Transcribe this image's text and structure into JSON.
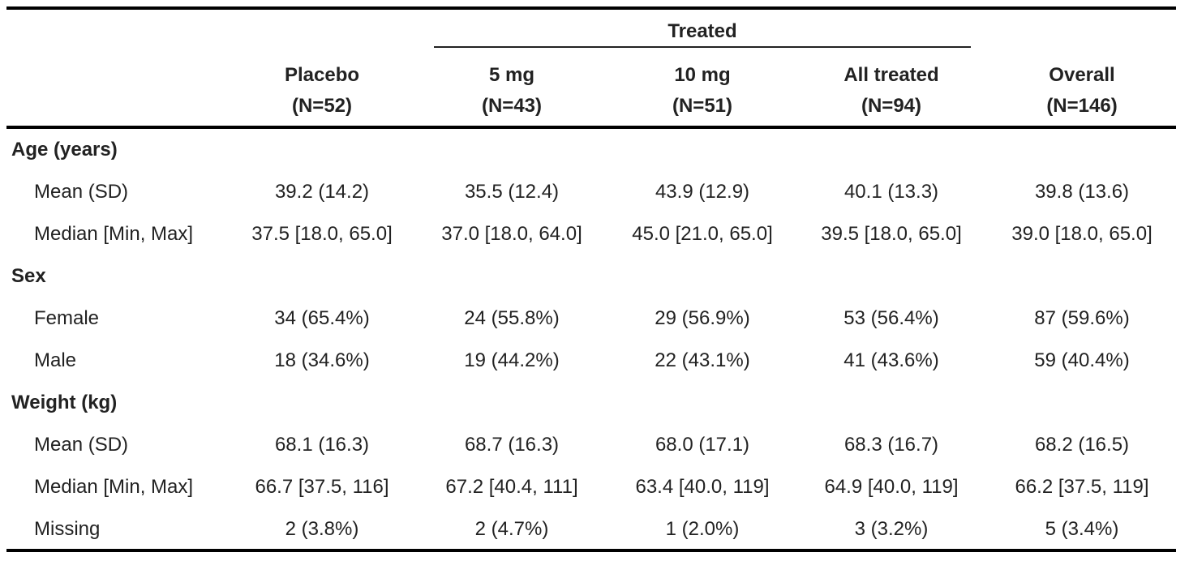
{
  "header": {
    "spanner": "Treated",
    "columns": [
      {
        "name": "Placebo",
        "n": "(N=52)"
      },
      {
        "name": "5 mg",
        "n": "(N=43)"
      },
      {
        "name": "10 mg",
        "n": "(N=51)"
      },
      {
        "name": "All treated",
        "n": "(N=94)"
      },
      {
        "name": "Overall",
        "n": "(N=146)"
      }
    ]
  },
  "sections": [
    {
      "title": "Age (years)",
      "rows": [
        {
          "label": "Mean (SD)",
          "values": [
            "39.2 (14.2)",
            "35.5 (12.4)",
            "43.9 (12.9)",
            "40.1 (13.3)",
            "39.8 (13.6)"
          ]
        },
        {
          "label": "Median [Min, Max]",
          "values": [
            "37.5 [18.0, 65.0]",
            "37.0 [18.0, 64.0]",
            "45.0 [21.0, 65.0]",
            "39.5 [18.0, 65.0]",
            "39.0 [18.0, 65.0]"
          ]
        }
      ]
    },
    {
      "title": "Sex",
      "rows": [
        {
          "label": "Female",
          "values": [
            "34 (65.4%)",
            "24 (55.8%)",
            "29 (56.9%)",
            "53 (56.4%)",
            "87 (59.6%)"
          ]
        },
        {
          "label": "Male",
          "values": [
            "18 (34.6%)",
            "19 (44.2%)",
            "22 (43.1%)",
            "41 (43.6%)",
            "59 (40.4%)"
          ]
        }
      ]
    },
    {
      "title": "Weight (kg)",
      "rows": [
        {
          "label": "Mean (SD)",
          "values": [
            "68.1 (16.3)",
            "68.7 (16.3)",
            "68.0 (17.1)",
            "68.3 (16.7)",
            "68.2 (16.5)"
          ]
        },
        {
          "label": "Median [Min, Max]",
          "values": [
            "66.7 [37.5, 116]",
            "67.2 [40.4, 111]",
            "63.4 [40.0, 119]",
            "64.9 [40.0, 119]",
            "66.2 [37.5, 119]"
          ]
        },
        {
          "label": "Missing",
          "values": [
            "2 (3.8%)",
            "2 (4.7%)",
            "1 (2.0%)",
            "3 (3.2%)",
            "5 (3.4%)"
          ]
        }
      ]
    }
  ]
}
